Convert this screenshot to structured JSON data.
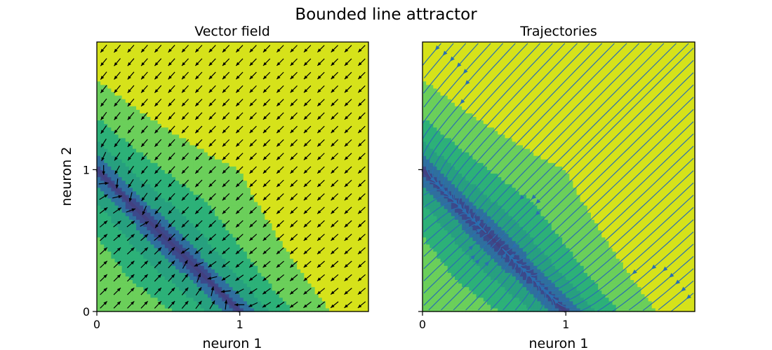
{
  "figure": {
    "title": "Bounded line attractor"
  },
  "chart_data": [
    {
      "type": "heatmap",
      "title": "Vector field",
      "xlabel": "neuron 1",
      "ylabel": "neuron 2",
      "xlim": [
        0,
        1.9
      ],
      "ylim": [
        0,
        1.9
      ],
      "xticks": [
        0,
        1
      ],
      "yticks": [
        0,
        1
      ],
      "field": "dx = (1 - x - y) * (1,1)/2 - small radial drift",
      "line_attractor": {
        "from": [
          0,
          1
        ],
        "to": [
          1,
          0
        ]
      },
      "overlay": "quiver",
      "quiver_color": "#000000"
    },
    {
      "type": "heatmap",
      "title": "Trajectories",
      "xlabel": "neuron 1",
      "ylabel": "",
      "xlim": [
        0,
        1.9
      ],
      "ylim": [
        0,
        1.9
      ],
      "xticks": [
        0,
        1
      ],
      "yticks": [
        0,
        1
      ],
      "line_attractor": {
        "from": [
          0,
          1
        ],
        "to": [
          1,
          0
        ]
      },
      "overlay": "streamlines",
      "stream_color": "#2a6fb0"
    }
  ],
  "colors": {
    "level_darkest": "#3b4a8c",
    "level_dark": "#2f6f9e",
    "level_mid_dark": "#27a07f",
    "level_mid": "#2cb178",
    "level_light": "#6bcf5a",
    "level_lightest": "#cfe01b",
    "level_yellow": "#d6e21a"
  }
}
